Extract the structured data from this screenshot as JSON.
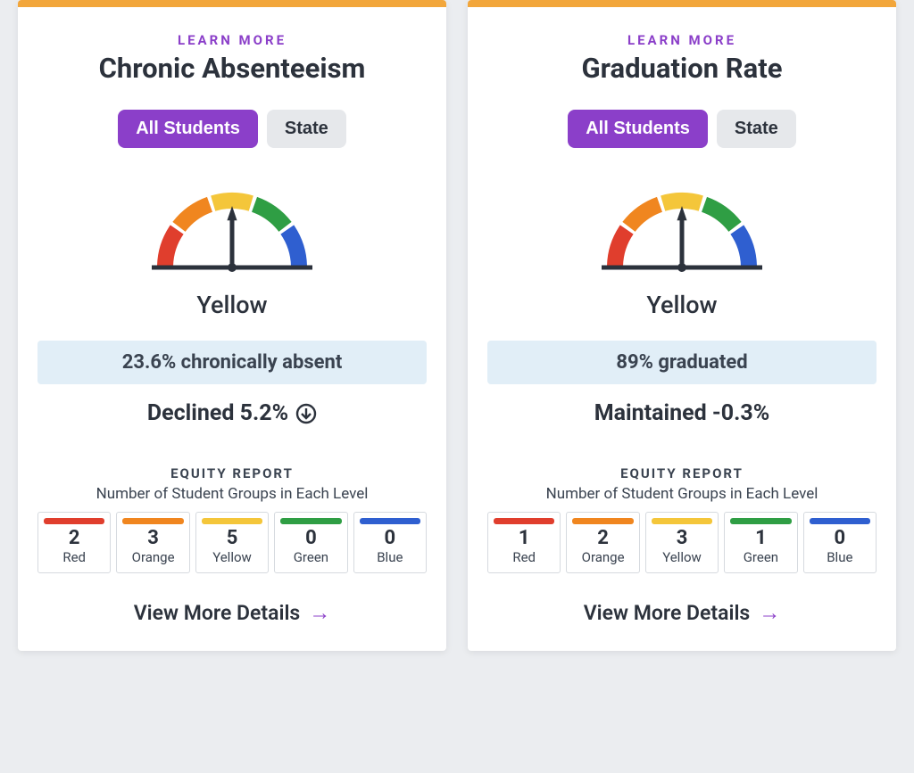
{
  "colors": {
    "accent_top": "#f2a63b",
    "purple": "#8b3fc9",
    "tab_inactive_bg": "#e6e8eb",
    "band_bg": "#e1eef7",
    "text_dark": "#2c323c",
    "text_mid": "#3a4350",
    "card_bg": "#ffffff",
    "page_bg": "#ebedf0",
    "gauge_stroke": "#2c323c"
  },
  "gauge": {
    "segments": [
      {
        "start_deg": 180,
        "end_deg": 216,
        "color": "#e03e2d"
      },
      {
        "start_deg": 216,
        "end_deg": 252,
        "color": "#f0861f"
      },
      {
        "start_deg": 252,
        "end_deg": 288,
        "color": "#f4c63a"
      },
      {
        "start_deg": 288,
        "end_deg": 324,
        "color": "#2f9e44"
      },
      {
        "start_deg": 324,
        "end_deg": 360,
        "color": "#2f5fd0"
      }
    ],
    "needle_deg": 270,
    "stroke_width": 18
  },
  "equity_levels": [
    {
      "key": "red",
      "label": "Red",
      "color": "#e03e2d"
    },
    {
      "key": "orange",
      "label": "Orange",
      "color": "#f0861f"
    },
    {
      "key": "yellow",
      "label": "Yellow",
      "color": "#f4c63a"
    },
    {
      "key": "green",
      "label": "Green",
      "color": "#2f9e44"
    },
    {
      "key": "blue",
      "label": "Blue",
      "color": "#2f5fd0"
    }
  ],
  "cards": [
    {
      "learn_more": "LEARN MORE",
      "title": "Chronic Absenteeism",
      "tabs": {
        "active": "All Students",
        "inactive": "State"
      },
      "gauge_level": "Yellow",
      "stat_band": "23.6% chronically absent",
      "change_text": "Declined 5.2%",
      "change_icon": "down-circle",
      "equity_heading": "EQUITY REPORT",
      "equity_sub": "Number of Student Groups in Each Level",
      "equity_counts": {
        "red": 2,
        "orange": 3,
        "yellow": 5,
        "green": 0,
        "blue": 0
      },
      "view_more": "View More Details"
    },
    {
      "learn_more": "LEARN MORE",
      "title": "Graduation Rate",
      "tabs": {
        "active": "All Students",
        "inactive": "State"
      },
      "gauge_level": "Yellow",
      "stat_band": "89% graduated",
      "change_text": "Maintained -0.3%",
      "change_icon": null,
      "equity_heading": "EQUITY REPORT",
      "equity_sub": "Number of Student Groups in Each Level",
      "equity_counts": {
        "red": 1,
        "orange": 2,
        "yellow": 3,
        "green": 1,
        "blue": 0
      },
      "view_more": "View More Details"
    }
  ]
}
